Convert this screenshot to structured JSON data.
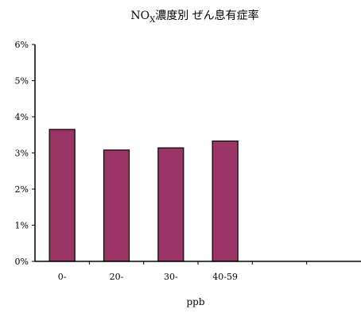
{
  "chart_data": {
    "type": "bar",
    "title": {
      "prefix": "NO",
      "subscript": "X",
      "suffix": "濃度別 ぜん息有症率"
    },
    "xlabel": "ppb",
    "ylabel": "",
    "categories": [
      "0-",
      "20-",
      "30-",
      "40-59",
      "",
      ""
    ],
    "series": [
      {
        "values": [
          3.65,
          3.08,
          3.14,
          3.33,
          null,
          null
        ]
      }
    ],
    "ylim": [
      0,
      6
    ],
    "y_ticks": [
      0,
      1,
      2,
      3,
      4,
      5,
      6
    ],
    "y_tick_labels": [
      "0%",
      "1%",
      "2%",
      "3%",
      "4%",
      "5%",
      "6%"
    ],
    "grid": false,
    "legend": "none",
    "colors": {
      "bar_fill": "#9b3565",
      "bar_stroke": "#000000",
      "axis": "#000000"
    }
  }
}
